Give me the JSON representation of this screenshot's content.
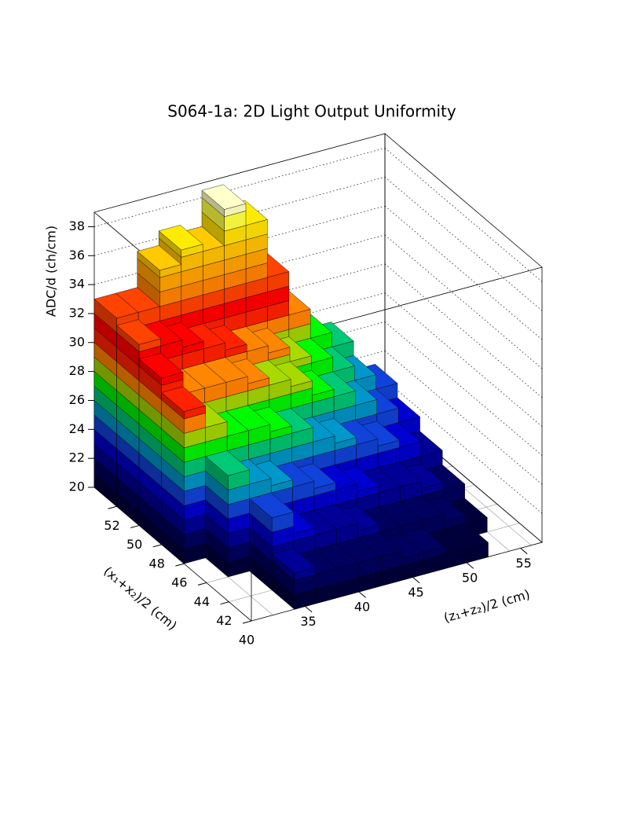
{
  "chart_data": {
    "type": "lego",
    "title": "S064-1a: 2D Light Output Uniformity",
    "xlabel": "(z₁+z₂)/2 (cm)",
    "ylabel": "(x₁+x₂)/2 (cm)",
    "zlabel": "ADC/d (ch/cm)",
    "xlim": [
      30,
      57
    ],
    "ylim": [
      40,
      54
    ],
    "zlim": [
      20,
      39
    ],
    "xticks": [
      35,
      40,
      45,
      50,
      55
    ],
    "yticks": [
      40,
      42,
      44,
      46,
      48,
      50,
      52
    ],
    "zticks": [
      20,
      22,
      24,
      26,
      28,
      30,
      32,
      34,
      36,
      38
    ],
    "grid": true,
    "xbins": [
      30,
      32,
      34,
      36,
      38,
      40,
      42,
      44,
      46,
      48,
      50,
      52,
      54,
      56
    ],
    "ybins": [
      40,
      42,
      44,
      46,
      48,
      50,
      52,
      54
    ],
    "values": [
      [
        null,
        null,
        22.5,
        22,
        22,
        22,
        22,
        21.5,
        21.5,
        21,
        21,
        null,
        null
      ],
      [
        null,
        null,
        25,
        23.5,
        23,
        23,
        22.5,
        22,
        22,
        22,
        21.5,
        21,
        null
      ],
      [
        null,
        27,
        26,
        25.5,
        25,
        24.5,
        24,
        23.5,
        23,
        23,
        22.5,
        22,
        null
      ],
      [
        30.5,
        29,
        28,
        28,
        27.5,
        27,
        26,
        25.5,
        25,
        24.5,
        24,
        23,
        null
      ],
      [
        31.5,
        30,
        30,
        30,
        29.5,
        29,
        28.5,
        27.5,
        27,
        26,
        25,
        24,
        null
      ],
      [
        32.5,
        32,
        31.5,
        31,
        30.5,
        30,
        29.5,
        28.5,
        28,
        27,
        26,
        25,
        null
      ],
      [
        33,
        33,
        35.5,
        36.5,
        36,
        38.5,
        37,
        33,
        30,
        28,
        27,
        null,
        null
      ]
    ],
    "palette": [
      "#00003a",
      "#00005a",
      "#000090",
      "#0000c8",
      "#1040d0",
      "#0090c0",
      "#00c070",
      "#00ee00",
      "#a0d000",
      "#ff8000",
      "#ff2000",
      "#ff0000",
      "#ff4000",
      "#ff8000",
      "#ffa000",
      "#ffc000",
      "#ffe000",
      "#ffff40",
      "#ffffc0",
      "#ffffff"
    ]
  }
}
